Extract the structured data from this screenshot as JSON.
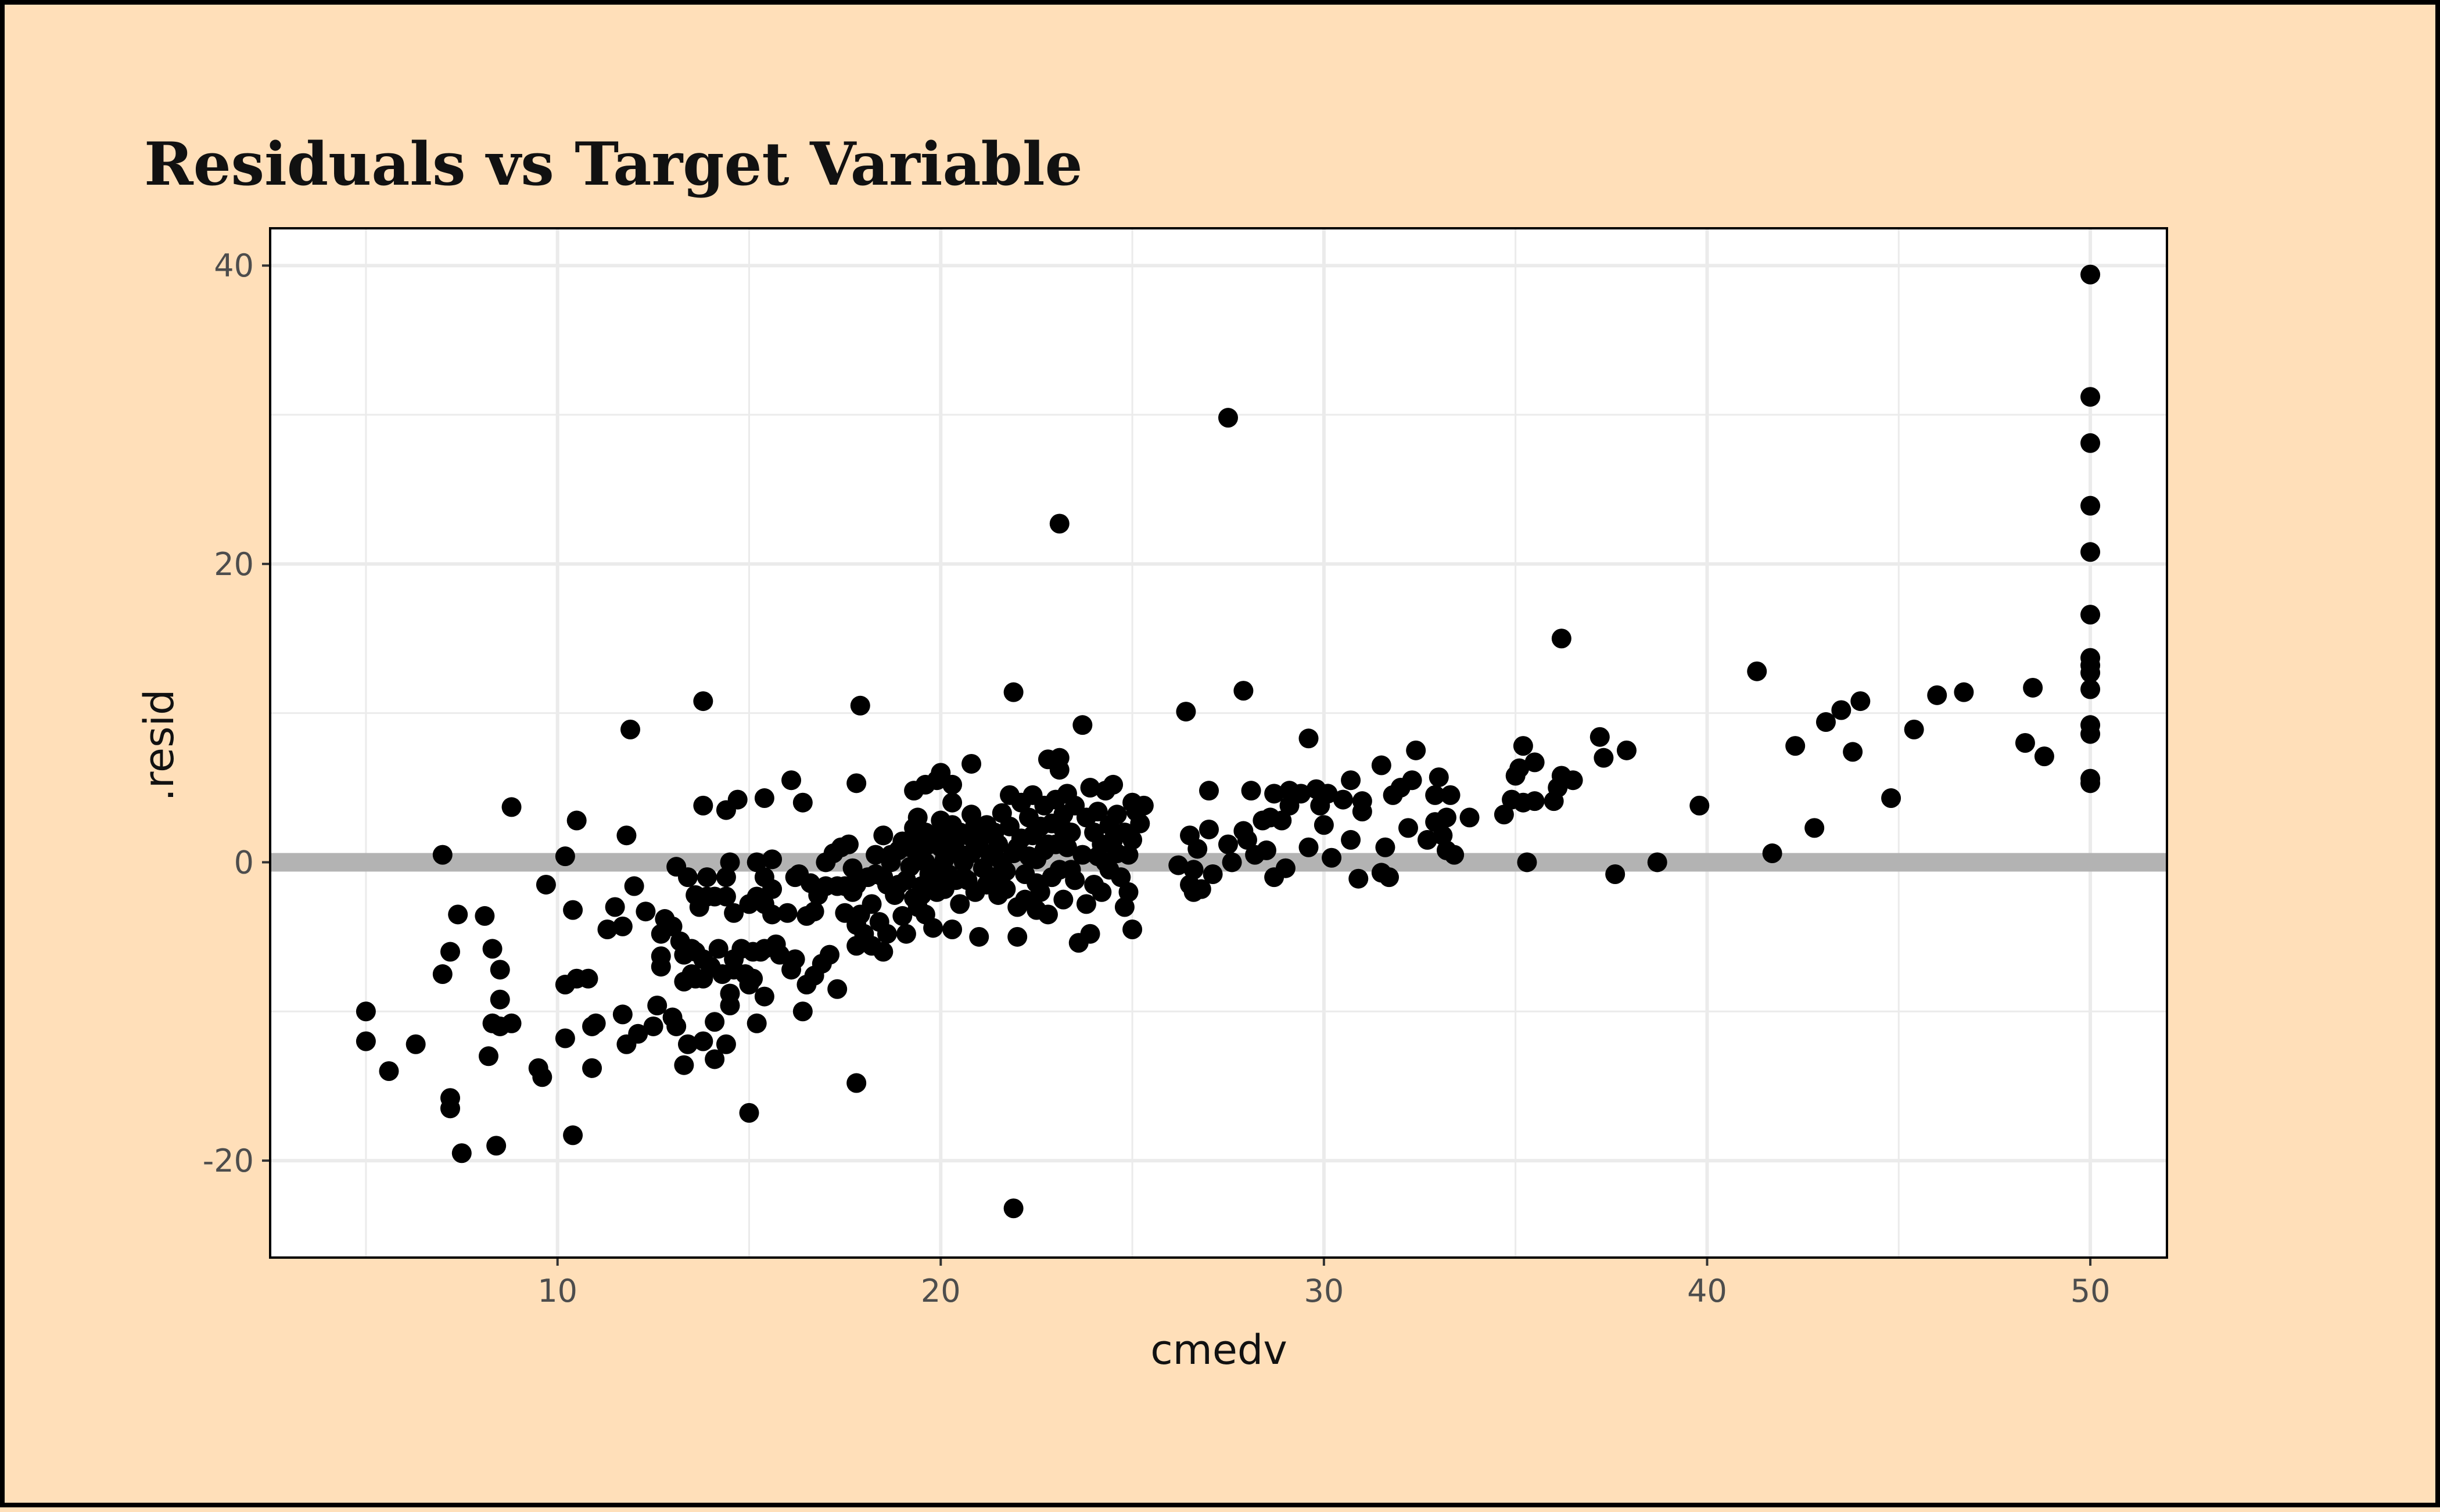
{
  "chart_data": {
    "type": "scatter",
    "title": "Residuals vs Target Variable",
    "xlabel": "cmedv",
    "ylabel": ".resid",
    "xlim": [
      2.5,
      52.0
    ],
    "ylim": [
      -26.5,
      42.5
    ],
    "x_ticks": [
      10,
      20,
      30,
      40,
      50
    ],
    "y_ticks": [
      -20,
      0,
      20,
      40
    ],
    "x_tick_labels": [
      "10",
      "20",
      "30",
      "40",
      "50"
    ],
    "y_tick_labels": [
      "-20",
      "0",
      "20",
      "40"
    ],
    "grid": true,
    "legend": "none",
    "reference_line": {
      "y": 0,
      "color": "#b3b3b3"
    },
    "colors": {
      "background": "#ffdfb9",
      "panel": "#ffffff",
      "grid": "#ebebeb",
      "points": "#000000",
      "border": "#000000"
    },
    "points": [
      [
        5.0,
        -10.0
      ],
      [
        5.0,
        -12.0
      ],
      [
        5.6,
        -14.0
      ],
      [
        6.3,
        -12.2
      ],
      [
        7.0,
        0.5
      ],
      [
        7.0,
        -7.5
      ],
      [
        7.2,
        -6.0
      ],
      [
        7.2,
        -15.8
      ],
      [
        7.2,
        -16.5
      ],
      [
        7.4,
        -3.5
      ],
      [
        7.5,
        -19.5
      ],
      [
        8.1,
        -3.6
      ],
      [
        8.2,
        -13.0
      ],
      [
        8.3,
        -5.8
      ],
      [
        8.3,
        -10.8
      ],
      [
        8.4,
        -19.0
      ],
      [
        8.5,
        -7.2
      ],
      [
        8.5,
        -9.2
      ],
      [
        8.5,
        -11.0
      ],
      [
        8.8,
        3.7
      ],
      [
        8.8,
        -10.8
      ],
      [
        9.5,
        -13.8
      ],
      [
        9.6,
        -14.4
      ],
      [
        9.7,
        -1.5
      ],
      [
        10.2,
        0.4
      ],
      [
        10.2,
        -8.2
      ],
      [
        10.2,
        -11.8
      ],
      [
        10.4,
        -3.2
      ],
      [
        10.4,
        -18.3
      ],
      [
        10.5,
        2.8
      ],
      [
        10.5,
        -7.8
      ],
      [
        10.8,
        -7.8
      ],
      [
        10.9,
        -11.0
      ],
      [
        10.9,
        -13.8
      ],
      [
        11.0,
        -10.8
      ],
      [
        11.3,
        -4.5
      ],
      [
        11.5,
        -3.0
      ],
      [
        11.7,
        -4.3
      ],
      [
        11.7,
        -10.2
      ],
      [
        11.8,
        -12.2
      ],
      [
        11.8,
        1.8
      ],
      [
        11.9,
        8.9
      ],
      [
        12.0,
        -1.6
      ],
      [
        12.1,
        -11.5
      ],
      [
        12.3,
        -3.3
      ],
      [
        12.5,
        -11.0
      ],
      [
        12.6,
        -9.6
      ],
      [
        12.7,
        -4.8
      ],
      [
        12.7,
        -6.3
      ],
      [
        12.7,
        -7.0
      ],
      [
        12.8,
        -3.8
      ],
      [
        13.0,
        -4.3
      ],
      [
        13.0,
        -10.4
      ],
      [
        13.1,
        -0.3
      ],
      [
        13.1,
        -11.0
      ],
      [
        13.2,
        -5.3
      ],
      [
        13.3,
        -6.2
      ],
      [
        13.3,
        -8.0
      ],
      [
        13.3,
        -13.6
      ],
      [
        13.4,
        -1.0
      ],
      [
        13.4,
        -12.2
      ],
      [
        13.5,
        -5.8
      ],
      [
        13.5,
        -7.5
      ],
      [
        13.6,
        -2.2
      ],
      [
        13.6,
        -6.0
      ],
      [
        13.6,
        -7.8
      ],
      [
        13.7,
        -3.0
      ],
      [
        13.8,
        -6.5
      ],
      [
        13.8,
        -7.8
      ],
      [
        13.8,
        -12.0
      ],
      [
        13.8,
        10.8
      ],
      [
        13.8,
        3.8
      ],
      [
        13.9,
        -1.0
      ],
      [
        13.9,
        -2.3
      ],
      [
        14.0,
        -7.0
      ],
      [
        14.1,
        -2.3
      ],
      [
        14.1,
        -10.7
      ],
      [
        14.1,
        -13.2
      ],
      [
        14.2,
        -5.8
      ],
      [
        14.3,
        -7.5
      ],
      [
        14.4,
        -1.0
      ],
      [
        14.4,
        -2.3
      ],
      [
        14.4,
        -12.2
      ],
      [
        14.4,
        3.5
      ],
      [
        14.5,
        0.0
      ],
      [
        14.5,
        -8.8
      ],
      [
        14.5,
        -9.6
      ],
      [
        14.6,
        -3.4
      ],
      [
        14.6,
        -6.5
      ],
      [
        14.6,
        -7.2
      ],
      [
        14.7,
        4.2
      ],
      [
        14.8,
        -5.8
      ],
      [
        14.9,
        -7.5
      ],
      [
        15.0,
        -2.8
      ],
      [
        15.0,
        -8.2
      ],
      [
        15.0,
        -16.8
      ],
      [
        15.1,
        -6.0
      ],
      [
        15.1,
        -7.8
      ],
      [
        15.2,
        -2.3
      ],
      [
        15.2,
        0.0
      ],
      [
        15.2,
        -10.8
      ],
      [
        15.3,
        -6.0
      ],
      [
        15.4,
        -9.0
      ],
      [
        15.4,
        -5.8
      ],
      [
        15.4,
        -2.8
      ],
      [
        15.4,
        -1.0
      ],
      [
        15.4,
        4.3
      ],
      [
        15.6,
        0.2
      ],
      [
        15.6,
        -1.8
      ],
      [
        15.6,
        -3.5
      ],
      [
        15.7,
        -5.5
      ],
      [
        15.8,
        -6.2
      ],
      [
        16.0,
        -3.4
      ],
      [
        16.1,
        5.5
      ],
      [
        16.1,
        -7.2
      ],
      [
        16.2,
        -1.0
      ],
      [
        16.2,
        -6.5
      ],
      [
        16.3,
        -0.8
      ],
      [
        16.4,
        4.0
      ],
      [
        16.4,
        -10.0
      ],
      [
        16.5,
        -8.2
      ],
      [
        16.5,
        -3.6
      ],
      [
        16.6,
        -1.4
      ],
      [
        16.7,
        -3.3
      ],
      [
        16.7,
        -7.6
      ],
      [
        16.8,
        -2.2
      ],
      [
        16.9,
        -6.8
      ],
      [
        17.0,
        0.0
      ],
      [
        17.0,
        -1.6
      ],
      [
        17.1,
        -6.2
      ],
      [
        17.2,
        0.6
      ],
      [
        17.3,
        -1.6
      ],
      [
        17.3,
        -8.5
      ],
      [
        17.4,
        1.0
      ],
      [
        17.5,
        -1.6
      ],
      [
        17.5,
        -3.4
      ],
      [
        17.6,
        1.2
      ],
      [
        17.7,
        -0.4
      ],
      [
        17.7,
        -2.0
      ],
      [
        17.8,
        -1.5
      ],
      [
        17.8,
        -4.2
      ],
      [
        17.8,
        -5.6
      ],
      [
        17.8,
        5.3
      ],
      [
        17.8,
        -14.8
      ],
      [
        17.9,
        10.5
      ],
      [
        17.9,
        -3.5
      ],
      [
        18.0,
        -4.8
      ],
      [
        18.1,
        -1.0
      ],
      [
        18.2,
        -5.6
      ],
      [
        18.2,
        -2.8
      ],
      [
        18.3,
        0.5
      ],
      [
        18.3,
        -0.8
      ],
      [
        18.4,
        -4.0
      ],
      [
        18.5,
        -1.0
      ],
      [
        18.5,
        -6.0
      ],
      [
        18.5,
        1.8
      ],
      [
        18.6,
        -1.5
      ],
      [
        18.6,
        -4.8
      ],
      [
        18.7,
        0.5
      ],
      [
        18.7,
        0.0
      ],
      [
        18.8,
        -2.2
      ],
      [
        18.9,
        0.8
      ],
      [
        18.9,
        -1.5
      ],
      [
        19.0,
        1.4
      ],
      [
        19.0,
        -3.6
      ],
      [
        19.1,
        -1.2
      ],
      [
        19.1,
        -4.8
      ],
      [
        19.2,
        1.0
      ],
      [
        19.2,
        -0.3
      ],
      [
        19.3,
        2.3
      ],
      [
        19.3,
        4.8
      ],
      [
        19.3,
        -2.4
      ],
      [
        19.4,
        1.5
      ],
      [
        19.4,
        3.0
      ],
      [
        19.4,
        -3.0
      ],
      [
        19.5,
        0.4
      ],
      [
        19.5,
        -1.6
      ],
      [
        19.5,
        -2.2
      ],
      [
        19.6,
        5.2
      ],
      [
        19.6,
        2.0
      ],
      [
        19.6,
        0.0
      ],
      [
        19.6,
        -3.5
      ],
      [
        19.7,
        1.2
      ],
      [
        19.7,
        -0.8
      ],
      [
        19.8,
        -1.0
      ],
      [
        19.8,
        -4.4
      ],
      [
        19.9,
        5.5
      ],
      [
        19.9,
        1.8
      ],
      [
        19.9,
        -2.0
      ],
      [
        20.0,
        6.0
      ],
      [
        20.0,
        2.8
      ],
      [
        20.0,
        1.0
      ],
      [
        20.0,
        -0.5
      ],
      [
        20.1,
        0.2
      ],
      [
        20.1,
        -1.8
      ],
      [
        20.2,
        1.5
      ],
      [
        20.2,
        -0.8
      ],
      [
        20.3,
        4.0
      ],
      [
        20.3,
        2.5
      ],
      [
        20.3,
        5.2
      ],
      [
        20.3,
        -4.5
      ],
      [
        20.4,
        0.8
      ],
      [
        20.4,
        -1.2
      ],
      [
        20.5,
        2.0
      ],
      [
        20.5,
        -2.8
      ],
      [
        20.6,
        0.0
      ],
      [
        20.6,
        -1.0
      ],
      [
        20.7,
        1.8
      ],
      [
        20.7,
        -1.2
      ],
      [
        20.8,
        6.6
      ],
      [
        20.8,
        3.2
      ],
      [
        20.8,
        0.6
      ],
      [
        20.9,
        2.5
      ],
      [
        20.9,
        -2.0
      ],
      [
        21.0,
        1.0
      ],
      [
        21.0,
        -5.0
      ],
      [
        21.1,
        1.8
      ],
      [
        21.1,
        -0.4
      ],
      [
        21.2,
        2.5
      ],
      [
        21.2,
        -1.5
      ],
      [
        21.3,
        0.4
      ],
      [
        21.4,
        2.0
      ],
      [
        21.4,
        -1.0
      ],
      [
        21.5,
        1.2
      ],
      [
        21.5,
        -2.2
      ],
      [
        21.6,
        3.3
      ],
      [
        21.6,
        0.0
      ],
      [
        21.7,
        -0.6
      ],
      [
        21.7,
        -1.8
      ],
      [
        21.8,
        2.4
      ],
      [
        21.8,
        4.5
      ],
      [
        21.9,
        0.6
      ],
      [
        21.9,
        11.4
      ],
      [
        21.9,
        -23.2
      ],
      [
        22.0,
        1.0
      ],
      [
        22.0,
        -3.0
      ],
      [
        22.0,
        -5.0
      ],
      [
        22.1,
        4.0
      ],
      [
        22.1,
        1.6
      ],
      [
        22.2,
        -0.8
      ],
      [
        22.2,
        -2.5
      ],
      [
        22.3,
        3.0
      ],
      [
        22.3,
        0.4
      ],
      [
        22.4,
        1.8
      ],
      [
        22.4,
        4.5
      ],
      [
        22.5,
        0.2
      ],
      [
        22.5,
        -1.4
      ],
      [
        22.5,
        -3.2
      ],
      [
        22.6,
        2.4
      ],
      [
        22.6,
        -2.0
      ],
      [
        22.7,
        3.8
      ],
      [
        22.7,
        0.8
      ],
      [
        22.8,
        6.9
      ],
      [
        22.8,
        1.2
      ],
      [
        22.8,
        -3.5
      ],
      [
        22.9,
        2.6
      ],
      [
        22.9,
        -1.0
      ],
      [
        23.0,
        4.2
      ],
      [
        23.0,
        1.2
      ],
      [
        23.1,
        22.7
      ],
      [
        23.1,
        7.0
      ],
      [
        23.1,
        6.2
      ],
      [
        23.1,
        -0.5
      ],
      [
        23.2,
        2.2
      ],
      [
        23.2,
        3.2
      ],
      [
        23.2,
        -2.5
      ],
      [
        23.3,
        4.6
      ],
      [
        23.3,
        1.0
      ],
      [
        23.4,
        -0.5
      ],
      [
        23.4,
        2.0
      ],
      [
        23.5,
        3.8
      ],
      [
        23.5,
        -1.2
      ],
      [
        23.6,
        -5.4
      ],
      [
        23.7,
        9.2
      ],
      [
        23.7,
        0.5
      ],
      [
        23.8,
        3.0
      ],
      [
        23.8,
        -2.8
      ],
      [
        23.9,
        5.0
      ],
      [
        23.9,
        -4.8
      ],
      [
        24.0,
        2.0
      ],
      [
        24.0,
        -1.5
      ],
      [
        24.1,
        3.4
      ],
      [
        24.1,
        0.4
      ],
      [
        24.2,
        1.2
      ],
      [
        24.2,
        -2.0
      ],
      [
        24.3,
        4.8
      ],
      [
        24.3,
        0.0
      ],
      [
        24.4,
        2.5
      ],
      [
        24.4,
        -0.5
      ],
      [
        24.5,
        5.2
      ],
      [
        24.5,
        1.5
      ],
      [
        24.6,
        3.2
      ],
      [
        24.6,
        0.6
      ],
      [
        24.7,
        -1.0
      ],
      [
        24.8,
        2.0
      ],
      [
        24.8,
        -3.0
      ],
      [
        24.9,
        0.5
      ],
      [
        24.9,
        -2.0
      ],
      [
        25.0,
        4.0
      ],
      [
        25.0,
        1.5
      ],
      [
        25.0,
        -4.5
      ],
      [
        25.1,
        3.4
      ],
      [
        25.2,
        2.6
      ],
      [
        25.3,
        3.8
      ],
      [
        26.2,
        -0.2
      ],
      [
        26.4,
        10.1
      ],
      [
        26.5,
        1.8
      ],
      [
        26.5,
        -1.5
      ],
      [
        26.6,
        -0.5
      ],
      [
        26.6,
        -2.0
      ],
      [
        26.7,
        0.9
      ],
      [
        26.8,
        -1.8
      ],
      [
        27.0,
        4.8
      ],
      [
        27.0,
        2.2
      ],
      [
        27.1,
        -0.8
      ],
      [
        27.5,
        29.8
      ],
      [
        27.5,
        1.2
      ],
      [
        27.6,
        0.0
      ],
      [
        27.9,
        11.5
      ],
      [
        27.9,
        2.1
      ],
      [
        28.0,
        1.5
      ],
      [
        28.1,
        4.8
      ],
      [
        28.2,
        0.5
      ],
      [
        28.4,
        2.8
      ],
      [
        28.5,
        0.8
      ],
      [
        28.6,
        3.0
      ],
      [
        28.7,
        4.6
      ],
      [
        28.7,
        -1.0
      ],
      [
        28.9,
        2.8
      ],
      [
        29.0,
        -0.4
      ],
      [
        29.1,
        4.8
      ],
      [
        29.1,
        3.8
      ],
      [
        29.4,
        4.6
      ],
      [
        29.6,
        8.3
      ],
      [
        29.6,
        1.0
      ],
      [
        29.8,
        4.9
      ],
      [
        29.9,
        3.8
      ],
      [
        30.0,
        2.5
      ],
      [
        30.1,
        4.6
      ],
      [
        30.2,
        0.3
      ],
      [
        30.5,
        4.2
      ],
      [
        30.7,
        5.5
      ],
      [
        30.7,
        1.5
      ],
      [
        30.9,
        -1.1
      ],
      [
        31.0,
        3.4
      ],
      [
        31.0,
        4.1
      ],
      [
        31.5,
        6.5
      ],
      [
        31.5,
        -0.7
      ],
      [
        31.6,
        1.0
      ],
      [
        31.7,
        -1.0
      ],
      [
        31.8,
        4.5
      ],
      [
        32.0,
        5.0
      ],
      [
        32.2,
        2.3
      ],
      [
        32.3,
        5.5
      ],
      [
        32.4,
        7.5
      ],
      [
        32.7,
        1.5
      ],
      [
        32.9,
        2.7
      ],
      [
        32.9,
        4.5
      ],
      [
        33.0,
        5.7
      ],
      [
        33.1,
        1.8
      ],
      [
        33.2,
        0.8
      ],
      [
        33.2,
        3.0
      ],
      [
        33.3,
        4.5
      ],
      [
        33.4,
        0.5
      ],
      [
        33.8,
        3.0
      ],
      [
        34.7,
        3.2
      ],
      [
        34.9,
        4.2
      ],
      [
        35.0,
        5.8
      ],
      [
        35.1,
        6.3
      ],
      [
        35.2,
        7.8
      ],
      [
        35.2,
        4.0
      ],
      [
        35.3,
        0.0
      ],
      [
        35.5,
        6.7
      ],
      [
        35.5,
        4.1
      ],
      [
        36.0,
        4.1
      ],
      [
        36.1,
        5.0
      ],
      [
        36.2,
        15.0
      ],
      [
        36.2,
        5.8
      ],
      [
        36.5,
        5.5
      ],
      [
        37.2,
        8.4
      ],
      [
        37.3,
        7.0
      ],
      [
        37.6,
        -0.8
      ],
      [
        37.9,
        7.5
      ],
      [
        38.7,
        0.0
      ],
      [
        39.8,
        3.8
      ],
      [
        41.3,
        12.8
      ],
      [
        41.7,
        0.6
      ],
      [
        42.3,
        7.8
      ],
      [
        42.8,
        2.3
      ],
      [
        43.1,
        9.4
      ],
      [
        43.5,
        10.2
      ],
      [
        43.8,
        7.4
      ],
      [
        44.0,
        10.8
      ],
      [
        44.8,
        4.3
      ],
      [
        45.4,
        8.9
      ],
      [
        46.0,
        11.2
      ],
      [
        46.7,
        11.4
      ],
      [
        48.3,
        8.0
      ],
      [
        48.5,
        11.7
      ],
      [
        48.8,
        7.1
      ],
      [
        50.0,
        39.4
      ],
      [
        50.0,
        31.2
      ],
      [
        50.0,
        28.1
      ],
      [
        50.0,
        23.9
      ],
      [
        50.0,
        20.8
      ],
      [
        50.0,
        16.6
      ],
      [
        50.0,
        13.7
      ],
      [
        50.0,
        13.2
      ],
      [
        50.0,
        12.7
      ],
      [
        50.0,
        11.6
      ],
      [
        50.0,
        9.2
      ],
      [
        50.0,
        8.6
      ],
      [
        50.0,
        5.6
      ],
      [
        50.0,
        5.3
      ]
    ]
  }
}
